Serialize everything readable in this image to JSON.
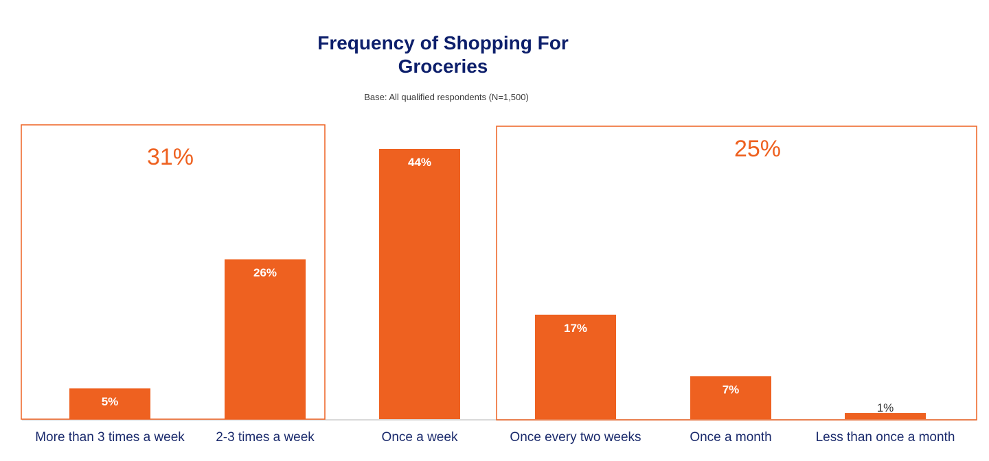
{
  "chart_data": {
    "type": "bar",
    "title": "Frequency of Shopping For Groceries",
    "subtitle": "Base: All qualified respondents (N=1,500)",
    "categories": [
      "More than 3 times a week",
      "2-3 times a week",
      "Once a week",
      "Once every two weeks",
      "Once a month",
      "Less than once a month"
    ],
    "values": [
      5,
      26,
      44,
      17,
      7,
      1
    ],
    "data_labels": [
      "5%",
      "26%",
      "44%",
      "17%",
      "7%",
      "1%"
    ],
    "ylim": [
      0,
      44
    ],
    "grid": false,
    "groups": [
      {
        "label": "31%",
        "categories": [
          0,
          1
        ]
      },
      {
        "label": "25%",
        "categories": [
          3,
          4,
          5
        ]
      }
    ],
    "colors": {
      "bar": "#ee6120",
      "box": "#ee6120",
      "title": "#0d1f6b",
      "axis": "#d9d9d9",
      "tick_label": "#1a2a6c"
    }
  }
}
